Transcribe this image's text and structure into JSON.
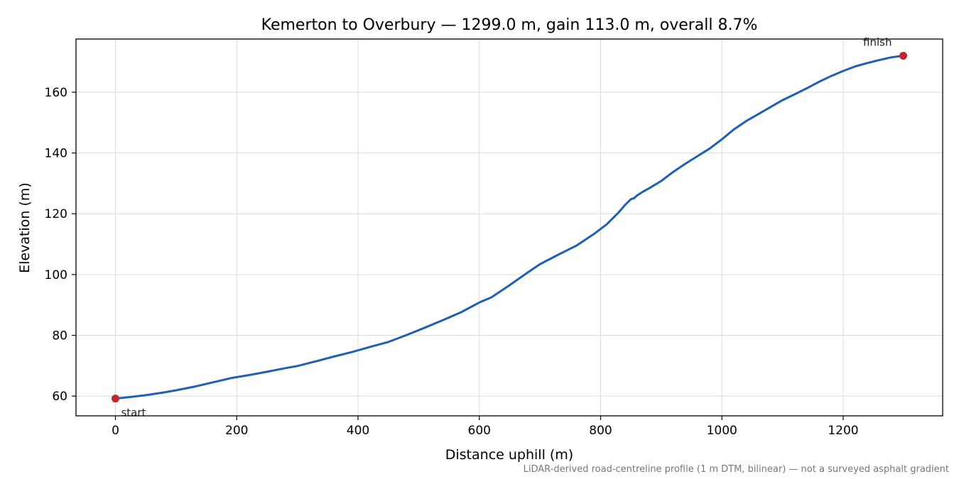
{
  "chart_data": {
    "type": "line",
    "title": "Kemerton to Overbury — 1299.0 m, gain 113.0 m, overall 8.7%",
    "xlabel": "Distance uphill (m)",
    "ylabel": "Elevation (m)",
    "xlim": [
      -65,
      1364
    ],
    "ylim": [
      53.5,
      177.5
    ],
    "x_ticks": [
      0,
      200,
      400,
      600,
      800,
      1000,
      1200
    ],
    "y_ticks": [
      60,
      80,
      100,
      120,
      140,
      160
    ],
    "grid": true,
    "footnote": "LiDAR-derived road-centreline profile (1 m DTM, bilinear) — not a surveyed asphalt gradient",
    "series": [
      {
        "color": "#1f5fb4",
        "x": [
          0,
          20,
          50,
          80,
          100,
          130,
          160,
          190,
          220,
          250,
          280,
          300,
          330,
          360,
          390,
          420,
          450,
          480,
          510,
          540,
          570,
          600,
          620,
          650,
          680,
          700,
          730,
          760,
          790,
          810,
          830,
          840,
          850,
          855,
          860,
          870,
          880,
          900,
          920,
          940,
          960,
          980,
          1000,
          1020,
          1040,
          1060,
          1080,
          1100,
          1120,
          1140,
          1160,
          1180,
          1200,
          1220,
          1240,
          1260,
          1280,
          1299
        ],
        "y": [
          59.2,
          59.6,
          60.3,
          61.2,
          61.9,
          63.1,
          64.5,
          65.9,
          66.9,
          68.0,
          69.2,
          69.9,
          71.4,
          73.0,
          74.5,
          76.2,
          77.8,
          80.1,
          82.5,
          85.0,
          87.6,
          90.8,
          92.5,
          96.5,
          100.7,
          103.4,
          106.5,
          109.5,
          113.5,
          116.5,
          120.5,
          122.8,
          124.8,
          125.1,
          126.0,
          127.3,
          128.4,
          130.8,
          133.8,
          136.5,
          139.0,
          141.5,
          144.5,
          147.8,
          150.5,
          152.8,
          155.1,
          157.4,
          159.3,
          161.3,
          163.4,
          165.3,
          167.0,
          168.5,
          169.6,
          170.6,
          171.5,
          172.0
        ]
      }
    ],
    "markers": [
      {
        "label": "start",
        "x": 0,
        "y": 59.2,
        "color": "#c1272d"
      },
      {
        "label": "finish",
        "x": 1299,
        "y": 172.0,
        "color": "#c1272d"
      }
    ]
  }
}
